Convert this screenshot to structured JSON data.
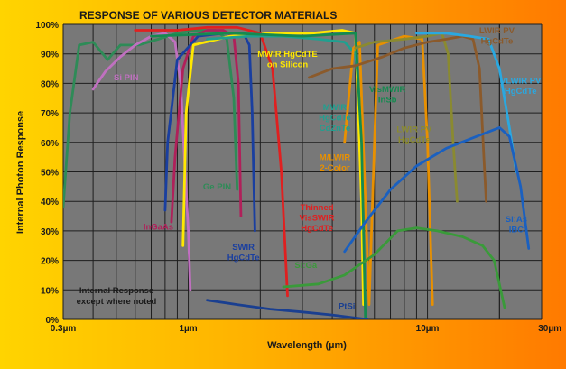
{
  "chart_data": {
    "type": "line",
    "title": "RESPONSE OF VARIOUS DETECTOR MATERIALS",
    "xlabel": "Wavelength (µm)",
    "ylabel": "Internal Photon Response",
    "x_scale": "log",
    "xlim": [
      0.3,
      30
    ],
    "ylim": [
      0,
      100
    ],
    "grid": true,
    "x_ticks": [
      {
        "value": 0.3,
        "label": "0.3µm"
      },
      {
        "value": 1,
        "label": "1µm"
      },
      {
        "value": 10,
        "label": "10µm"
      },
      {
        "value": 30,
        "label": "30µm"
      }
    ],
    "y_ticks": [
      {
        "value": 0,
        "label": "0%"
      },
      {
        "value": 10,
        "label": "10%"
      },
      {
        "value": 20,
        "label": "20%"
      },
      {
        "value": 30,
        "label": "30%"
      },
      {
        "value": 40,
        "label": "40%"
      },
      {
        "value": 50,
        "label": "50%"
      },
      {
        "value": 60,
        "label": "60%"
      },
      {
        "value": 70,
        "label": "70%"
      },
      {
        "value": 80,
        "label": "80%"
      },
      {
        "value": 90,
        "label": "90%"
      },
      {
        "value": 100,
        "label": "100%"
      }
    ],
    "note": [
      "Internal Response",
      "except where noted"
    ],
    "series": [
      {
        "name": "Ge PIN",
        "color": "#2e8b57",
        "lines": [
          "Ge PIN"
        ],
        "label_x": 1.32,
        "label_y": 44,
        "points": [
          [
            0.3,
            38
          ],
          [
            0.32,
            70
          ],
          [
            0.35,
            93
          ],
          [
            0.4,
            94
          ],
          [
            0.46,
            88
          ],
          [
            0.52,
            93
          ],
          [
            0.62,
            93
          ],
          [
            0.75,
            95
          ],
          [
            0.9,
            97
          ],
          [
            1.1,
            98
          ],
          [
            1.3,
            98
          ],
          [
            1.45,
            95
          ],
          [
            1.55,
            75
          ],
          [
            1.6,
            44
          ]
        ]
      },
      {
        "name": "Si PIN",
        "color": "#c070c0",
        "lines": [
          "Si PIN"
        ],
        "label_x": 0.55,
        "label_y": 81,
        "points": [
          [
            0.4,
            78
          ],
          [
            0.45,
            84
          ],
          [
            0.52,
            89
          ],
          [
            0.6,
            93
          ],
          [
            0.7,
            96
          ],
          [
            0.8,
            97
          ],
          [
            0.88,
            94
          ],
          [
            0.93,
            80
          ],
          [
            0.97,
            50
          ],
          [
            1.0,
            30
          ],
          [
            1.02,
            10
          ]
        ]
      },
      {
        "name": "InGaAs",
        "color": "#b0205a",
        "lines": [
          "InGaAs"
        ],
        "label_x": 0.75,
        "label_y": 30.5,
        "points": [
          [
            0.85,
            33
          ],
          [
            0.88,
            55
          ],
          [
            0.95,
            85
          ],
          [
            1.05,
            96
          ],
          [
            1.2,
            98
          ],
          [
            1.4,
            98
          ],
          [
            1.55,
            96
          ],
          [
            1.62,
            80
          ],
          [
            1.66,
            35
          ]
        ]
      },
      {
        "name": "SWIR HgCdTe",
        "color": "#1a3fa0",
        "lines": [
          "SWIR",
          "HgCdTe"
        ],
        "label_x": 1.7,
        "label_y": 23.5,
        "points": [
          [
            0.8,
            37
          ],
          [
            0.82,
            60
          ],
          [
            0.9,
            88
          ],
          [
            1.1,
            96
          ],
          [
            1.4,
            97
          ],
          [
            1.7,
            97
          ],
          [
            1.8,
            93
          ],
          [
            1.85,
            70
          ],
          [
            1.9,
            30
          ]
        ]
      },
      {
        "name": "MWIR HgCdTE on Silicon",
        "color": "#ffe800",
        "lines": [
          "MWIR HgCdTE",
          "on Silicon"
        ],
        "label_x": 2.6,
        "label_y": 89,
        "points": [
          [
            0.95,
            25
          ],
          [
            0.98,
            70
          ],
          [
            1.05,
            93
          ],
          [
            1.5,
            96
          ],
          [
            2.3,
            97
          ],
          [
            3.3,
            97
          ],
          [
            4.4,
            98
          ],
          [
            5.0,
            97
          ],
          [
            5.3,
            40
          ],
          [
            5.4,
            5
          ]
        ]
      },
      {
        "name": "Thinned VisSWIR HgCdTe",
        "color": "#e02020",
        "lines": [
          "Thinned",
          "VisSWIR",
          "HgCdTe"
        ],
        "label_x": 3.45,
        "label_y": 37,
        "points": [
          [
            0.6,
            98
          ],
          [
            0.9,
            98
          ],
          [
            1.2,
            99
          ],
          [
            1.6,
            99
          ],
          [
            2.0,
            97
          ],
          [
            2.25,
            85
          ],
          [
            2.45,
            50
          ],
          [
            2.6,
            8
          ]
        ]
      },
      {
        "name": "MWIR HgCdTe CdZnTe",
        "color": "#20a090",
        "lines": [
          "MWIR",
          "HgCdTe",
          "CdZnTe"
        ],
        "label_x": 4.1,
        "label_y": 71,
        "points": [
          [
            1.2,
            95
          ],
          [
            1.8,
            96
          ],
          [
            2.5,
            96
          ],
          [
            3.5,
            95
          ],
          [
            4.5,
            94
          ],
          [
            5.0,
            90
          ],
          [
            5.3,
            70
          ],
          [
            5.45,
            40
          ]
        ]
      },
      {
        "name": "M/LWIR 2-Color",
        "color": "#e89000",
        "lines": [
          "M/LWIR",
          "2-Color"
        ],
        "label_x": 4.1,
        "label_y": 54,
        "points": [
          [
            4.5,
            60
          ],
          [
            4.9,
            92
          ],
          [
            5.2,
            94
          ],
          [
            5.5,
            40
          ],
          [
            5.7,
            5
          ],
          [
            6.0,
            60
          ],
          [
            6.2,
            93
          ],
          [
            8.0,
            96
          ],
          [
            9.5,
            95
          ],
          [
            10.0,
            60
          ],
          [
            10.5,
            5
          ]
        ]
      },
      {
        "name": "VisMWIR InSb",
        "color": "#158a50",
        "lines": [
          "VisMWIR",
          "InSb"
        ],
        "label_x": 6.8,
        "label_y": 77,
        "points": [
          [
            0.7,
            96
          ],
          [
            1.5,
            97
          ],
          [
            3.0,
            96
          ],
          [
            5.0,
            97
          ],
          [
            5.3,
            60
          ],
          [
            5.5,
            0
          ]
        ]
      },
      {
        "name": "LWIR PV HgCdTe",
        "color": "#8a8a30",
        "lines": [
          "LWIR PV",
          "HgCdTe"
        ],
        "label_x": 8.8,
        "label_y": 63.5,
        "points": [
          [
            5.0,
            92
          ],
          [
            6.0,
            94
          ],
          [
            8.0,
            95
          ],
          [
            10.0,
            96
          ],
          [
            11.5,
            97
          ],
          [
            12.2,
            90
          ],
          [
            12.8,
            60
          ],
          [
            13.3,
            40
          ]
        ]
      },
      {
        "name": "LWIR PV HgCdTe",
        "color": "#8b5a2b",
        "lines": [
          "LWIR PV",
          "HgCdTe"
        ],
        "label_x": 19.5,
        "label_y": 97,
        "points": [
          [
            3.2,
            82
          ],
          [
            4.0,
            85
          ],
          [
            5.0,
            86
          ],
          [
            6.5,
            89
          ],
          [
            8.0,
            92
          ],
          [
            10.0,
            94
          ],
          [
            12.0,
            95
          ],
          [
            14.0,
            96
          ],
          [
            15.5,
            95
          ],
          [
            16.5,
            85
          ],
          [
            17.2,
            55
          ],
          [
            17.6,
            40
          ]
        ]
      },
      {
        "name": "VLWIR PV HgCdTe",
        "color": "#2aa8e0",
        "lines": [
          "VLWIR PV",
          "HgCdTe"
        ],
        "label_x": 24.5,
        "label_y": 80,
        "points": [
          [
            9.0,
            97
          ],
          [
            12.0,
            97
          ],
          [
            15.0,
            96
          ],
          [
            18.0,
            95
          ],
          [
            20.0,
            85
          ],
          [
            22.0,
            65
          ],
          [
            23.5,
            50
          ]
        ]
      },
      {
        "name": "Si:As IBC",
        "color": "#1a60c0",
        "lines": [
          "Si:As",
          "IBC"
        ],
        "label_x": 23.5,
        "label_y": 33,
        "points": [
          [
            4.5,
            23
          ],
          [
            5.5,
            33
          ],
          [
            7.0,
            44
          ],
          [
            9.0,
            52
          ],
          [
            12.0,
            58
          ],
          [
            16.0,
            62
          ],
          [
            20.0,
            65
          ],
          [
            22.0,
            62
          ],
          [
            24.5,
            45
          ],
          [
            26.5,
            24
          ]
        ]
      },
      {
        "name": "Si:Ga",
        "color": "#3a9a3a",
        "lines": [
          "Si:Ga"
        ],
        "label_x": 3.1,
        "label_y": 17.5,
        "points": [
          [
            2.5,
            11
          ],
          [
            3.5,
            12
          ],
          [
            4.5,
            15
          ],
          [
            6.0,
            22
          ],
          [
            7.5,
            30
          ],
          [
            9.0,
            31
          ],
          [
            11.0,
            30
          ],
          [
            14.0,
            28
          ],
          [
            17.0,
            25
          ],
          [
            19.0,
            20
          ],
          [
            21.0,
            4
          ]
        ]
      },
      {
        "name": "PtSi",
        "color": "#1a3f90",
        "lines": [
          "PtSi"
        ],
        "label_x": 4.6,
        "label_y": 3.5,
        "points": [
          [
            1.2,
            6.5
          ],
          [
            1.6,
            5
          ],
          [
            2.2,
            3.5
          ],
          [
            3.0,
            2.5
          ],
          [
            4.0,
            1.5
          ],
          [
            5.0,
            0.5
          ],
          [
            5.6,
            0
          ]
        ]
      }
    ]
  }
}
